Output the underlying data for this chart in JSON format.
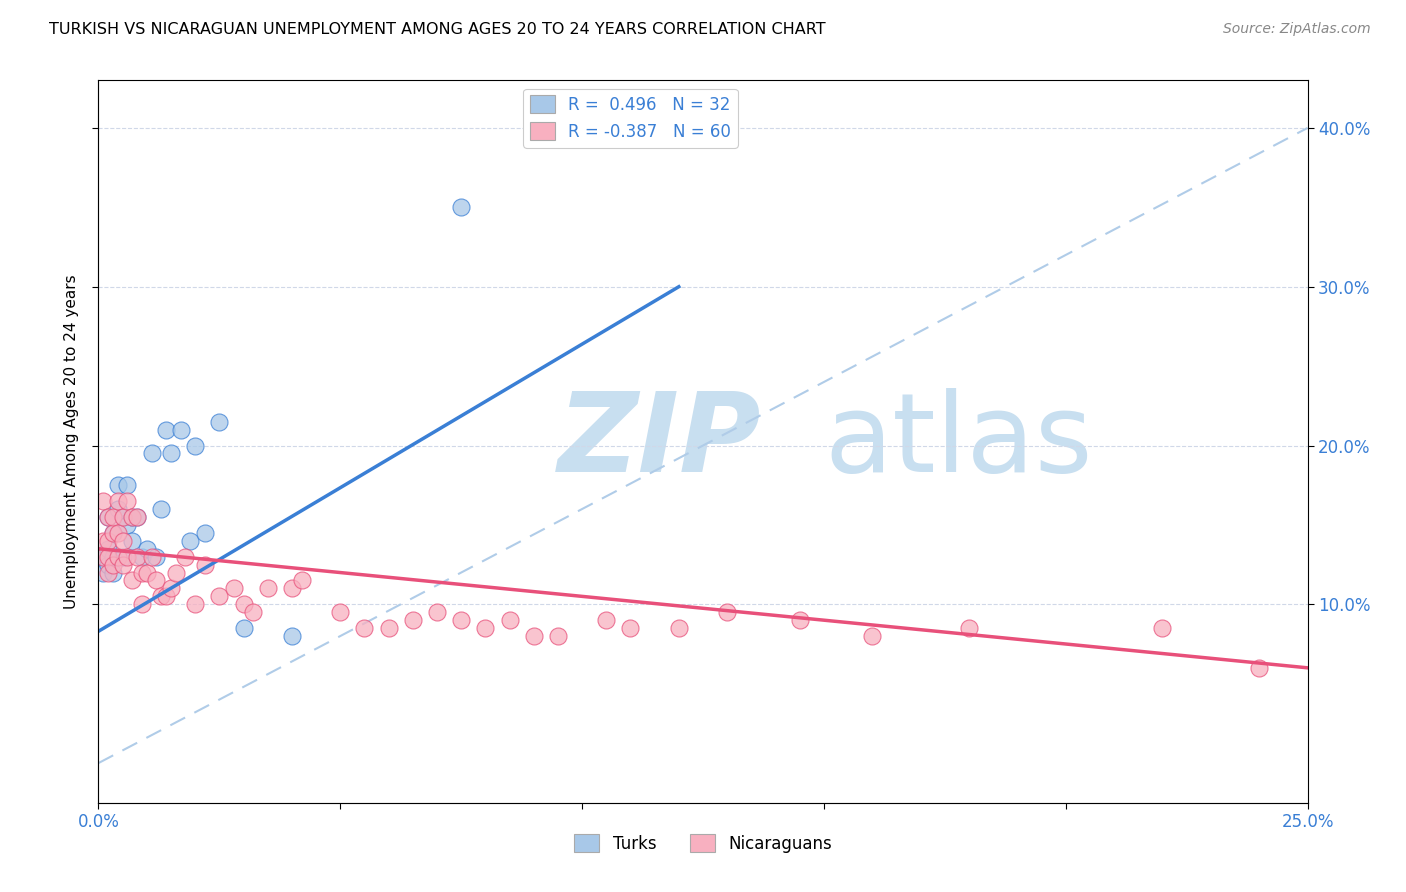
{
  "title": "TURKISH VS NICARAGUAN UNEMPLOYMENT AMONG AGES 20 TO 24 YEARS CORRELATION CHART",
  "source": "Source: ZipAtlas.com",
  "ylabel": "Unemployment Among Ages 20 to 24 years",
  "x_min": 0.0,
  "x_max": 0.25,
  "y_min": -0.025,
  "y_max": 0.43,
  "turks_R": 0.496,
  "turks_N": 32,
  "nicaraguans_R": -0.387,
  "nicaraguans_N": 60,
  "turks_color": "#a8c8e8",
  "nicaraguans_color": "#f8b0c0",
  "turks_line_color": "#3a7fd5",
  "nicaraguans_line_color": "#e8507a",
  "diagonal_color": "#b0cce8",
  "watermark_zip_color": "#c8dff0",
  "watermark_atlas_color": "#c8dff0",
  "turks_scatter_x": [
    0.001,
    0.001,
    0.002,
    0.002,
    0.002,
    0.003,
    0.003,
    0.003,
    0.004,
    0.004,
    0.005,
    0.005,
    0.006,
    0.006,
    0.007,
    0.007,
    0.008,
    0.009,
    0.01,
    0.011,
    0.012,
    0.013,
    0.014,
    0.015,
    0.017,
    0.019,
    0.02,
    0.022,
    0.025,
    0.03,
    0.04,
    0.075
  ],
  "turks_scatter_y": [
    0.13,
    0.12,
    0.155,
    0.135,
    0.125,
    0.145,
    0.13,
    0.12,
    0.175,
    0.16,
    0.155,
    0.13,
    0.175,
    0.15,
    0.155,
    0.14,
    0.155,
    0.13,
    0.135,
    0.195,
    0.13,
    0.16,
    0.21,
    0.195,
    0.21,
    0.14,
    0.2,
    0.145,
    0.215,
    0.085,
    0.08,
    0.35
  ],
  "nicaraguans_scatter_x": [
    0.001,
    0.001,
    0.001,
    0.002,
    0.002,
    0.002,
    0.002,
    0.003,
    0.003,
    0.003,
    0.004,
    0.004,
    0.004,
    0.005,
    0.005,
    0.005,
    0.006,
    0.006,
    0.007,
    0.007,
    0.008,
    0.008,
    0.009,
    0.009,
    0.01,
    0.011,
    0.012,
    0.013,
    0.014,
    0.015,
    0.016,
    0.018,
    0.02,
    0.022,
    0.025,
    0.028,
    0.03,
    0.032,
    0.035,
    0.04,
    0.042,
    0.05,
    0.055,
    0.06,
    0.065,
    0.07,
    0.075,
    0.08,
    0.085,
    0.09,
    0.095,
    0.105,
    0.11,
    0.12,
    0.13,
    0.145,
    0.16,
    0.18,
    0.22,
    0.24
  ],
  "nicaraguans_scatter_y": [
    0.13,
    0.14,
    0.165,
    0.14,
    0.13,
    0.155,
    0.12,
    0.145,
    0.125,
    0.155,
    0.145,
    0.13,
    0.165,
    0.155,
    0.14,
    0.125,
    0.165,
    0.13,
    0.155,
    0.115,
    0.13,
    0.155,
    0.12,
    0.1,
    0.12,
    0.13,
    0.115,
    0.105,
    0.105,
    0.11,
    0.12,
    0.13,
    0.1,
    0.125,
    0.105,
    0.11,
    0.1,
    0.095,
    0.11,
    0.11,
    0.115,
    0.095,
    0.085,
    0.085,
    0.09,
    0.095,
    0.09,
    0.085,
    0.09,
    0.08,
    0.08,
    0.09,
    0.085,
    0.085,
    0.095,
    0.09,
    0.08,
    0.085,
    0.085,
    0.06
  ],
  "turks_trend_x0": 0.0,
  "turks_trend_y0": 0.083,
  "turks_trend_x1": 0.12,
  "turks_trend_y1": 0.3,
  "nic_trend_x0": 0.0,
  "nic_trend_y0": 0.135,
  "nic_trend_x1": 0.25,
  "nic_trend_y1": 0.06
}
